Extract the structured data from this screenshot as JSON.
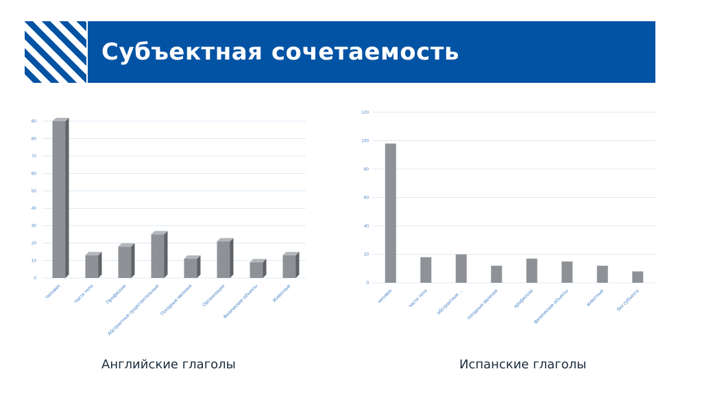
{
  "header": {
    "title": "Субъектная сочетаемость"
  },
  "colors": {
    "brand": "#0353a4",
    "bar": "#8e9297",
    "bar_side": "#5f6368",
    "bar_top": "#b3b6ba",
    "grid": "#dce8f3",
    "tick": "#4a86c8"
  },
  "captions": {
    "english": "Английские глаголы",
    "spanish": "Испанские глаголы"
  },
  "chart_data": [
    {
      "type": "bar",
      "style": "3d",
      "categories": [
        "Человек",
        "Части тела",
        "Профессии",
        "Абстрактные существительные",
        "Погодные явления",
        "Организации",
        "Физические объекты",
        "Животные"
      ],
      "values": [
        90,
        13,
        18,
        25,
        11,
        21,
        9,
        13
      ],
      "yticks": [
        0,
        10,
        20,
        30,
        40,
        50,
        60,
        70,
        80,
        90
      ],
      "ylim": [
        0,
        90
      ],
      "grid": true,
      "title": "",
      "xlabel": "",
      "ylabel": ""
    },
    {
      "type": "bar",
      "style": "flat",
      "categories": [
        "человек",
        "части тела",
        "абстрактные ...",
        "погодные явления",
        "профессии",
        "физические объекты",
        "животные",
        "без субъекта"
      ],
      "values": [
        98,
        18,
        20,
        12,
        17,
        15,
        12,
        8
      ],
      "yticks": [
        0,
        20,
        40,
        60,
        80,
        100,
        120
      ],
      "ylim": [
        0,
        120
      ],
      "grid": true,
      "title": "",
      "xlabel": "",
      "ylabel": ""
    }
  ]
}
